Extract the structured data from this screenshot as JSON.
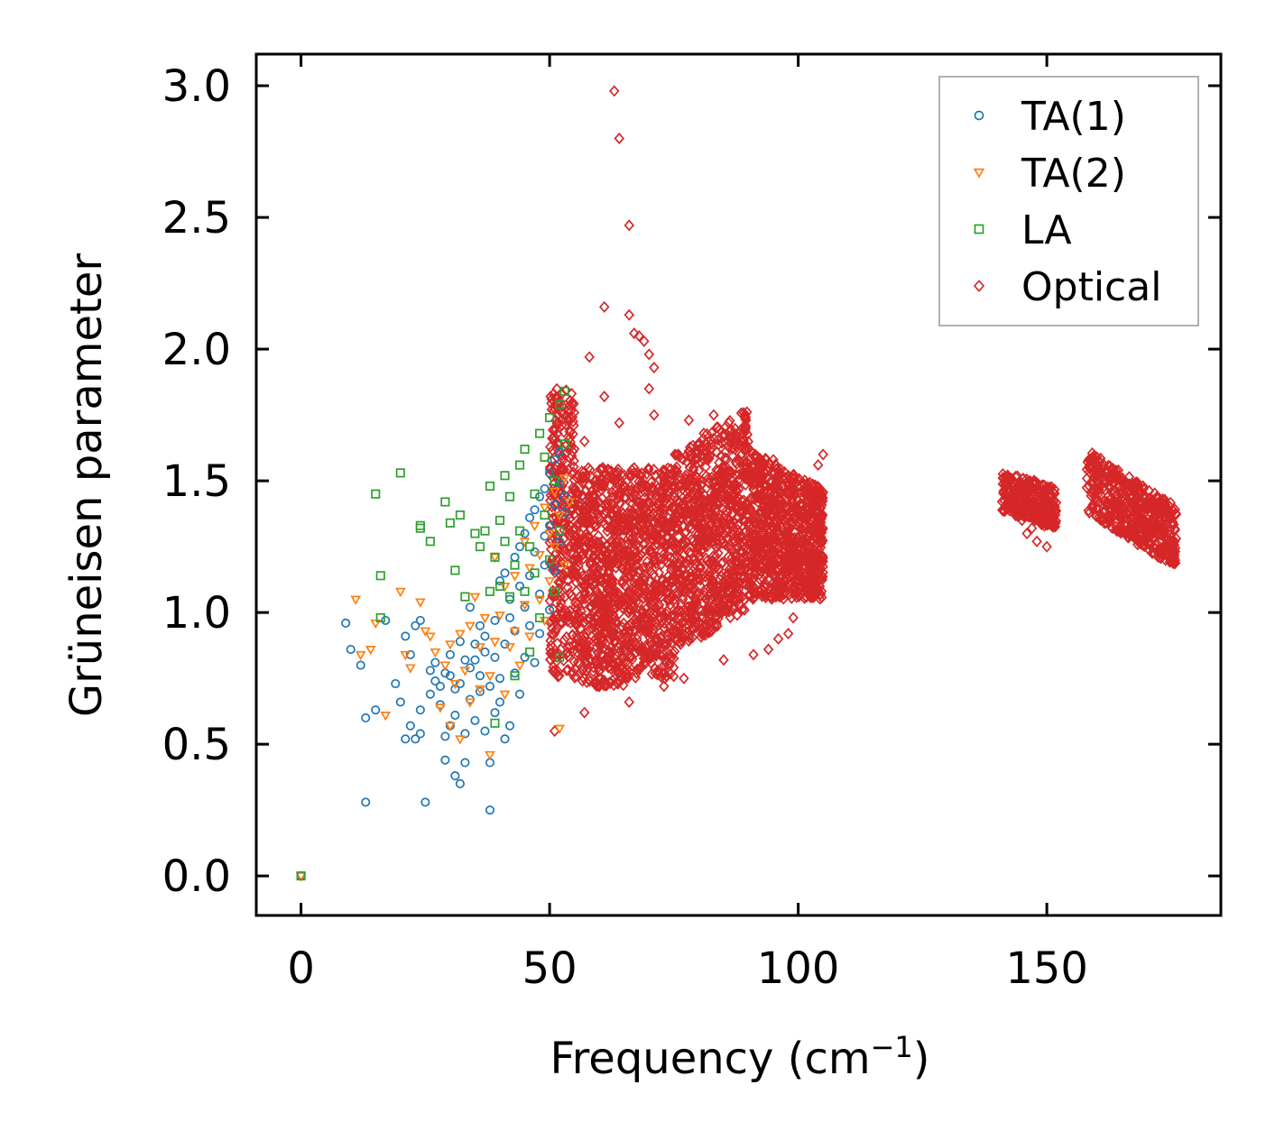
{
  "chart_data": {
    "type": "scatter",
    "title": "",
    "xlabel": "Frequency (cm",
    "xlabel_sup": "−1",
    "xlabel_tail": ")",
    "ylabel": "Grüneisen parameter",
    "xlim": [
      -9,
      185
    ],
    "ylim": [
      -0.15,
      3.12
    ],
    "xticks": [
      0,
      50,
      100,
      150
    ],
    "xtick_labels": [
      "0",
      "50",
      "100",
      "150"
    ],
    "yticks": [
      0.0,
      0.5,
      1.0,
      1.5,
      2.0,
      2.5,
      3.0
    ],
    "ytick_labels": [
      "0.0",
      "0.5",
      "1.0",
      "1.5",
      "2.0",
      "2.5",
      "3.0"
    ],
    "grid": false,
    "legend_position": "top-right",
    "series": [
      {
        "name": "TA(1)",
        "marker": "circle",
        "color": "#1f77b4",
        "x": [
          0,
          9,
          10,
          12,
          13,
          13,
          15,
          17,
          19,
          20,
          21,
          21,
          22,
          22,
          23,
          23,
          24,
          24,
          24,
          25,
          26,
          26,
          27,
          27,
          28,
          28,
          29,
          29,
          29,
          30,
          30,
          30,
          31,
          31,
          31,
          32,
          32,
          32,
          33,
          33,
          33,
          34,
          34,
          34,
          35,
          35,
          35,
          36,
          36,
          36,
          37,
          37,
          37,
          38,
          38,
          38,
          39,
          39,
          39,
          40,
          40,
          40,
          41,
          41,
          41,
          42,
          42,
          42,
          43,
          43,
          43,
          44,
          44,
          44,
          45,
          45,
          45,
          46,
          46,
          46,
          47,
          47,
          47,
          48,
          48,
          48,
          49,
          49,
          49,
          50,
          50,
          50,
          51,
          51,
          51,
          52,
          52,
          52,
          53,
          53
        ],
        "y": [
          0.0,
          0.96,
          0.86,
          0.8,
          0.6,
          0.28,
          0.63,
          0.97,
          0.73,
          0.66,
          0.91,
          0.52,
          0.57,
          0.84,
          0.95,
          0.52,
          0.54,
          0.63,
          0.97,
          0.28,
          0.69,
          0.78,
          0.81,
          0.74,
          0.72,
          0.65,
          0.77,
          0.53,
          0.44,
          0.76,
          0.57,
          0.84,
          0.71,
          0.38,
          0.61,
          0.73,
          0.35,
          0.89,
          0.82,
          0.54,
          0.43,
          0.67,
          1.02,
          0.79,
          0.88,
          0.59,
          0.82,
          0.7,
          0.95,
          0.76,
          0.55,
          0.91,
          0.85,
          0.72,
          0.43,
          0.25,
          0.97,
          0.83,
          0.62,
          1.12,
          0.75,
          0.66,
          0.88,
          1.15,
          0.52,
          0.98,
          1.05,
          0.57,
          0.77,
          1.21,
          0.93,
          0.69,
          1.1,
          1.25,
          0.83,
          1.3,
          1.02,
          0.95,
          1.14,
          1.36,
          0.81,
          1.23,
          1.39,
          1.07,
          1.44,
          0.92,
          1.18,
          1.47,
          1.29,
          1.01,
          1.53,
          1.33,
          1.16,
          1.41,
          1.58,
          1.27,
          1.49,
          1.61,
          1.38,
          1.44
        ]
      },
      {
        "name": "TA(2)",
        "marker": "triangle-down",
        "color": "#ff7f0e",
        "x": [
          0,
          11,
          12,
          14,
          15,
          17,
          20,
          21,
          22,
          24,
          25,
          26,
          27,
          28,
          29,
          30,
          30,
          31,
          32,
          32,
          33,
          34,
          34,
          35,
          36,
          36,
          37,
          38,
          38,
          39,
          39,
          40,
          41,
          41,
          42,
          43,
          43,
          44,
          45,
          45,
          46,
          46,
          47,
          48,
          48,
          49,
          49,
          50,
          50,
          51,
          51,
          52,
          52,
          53,
          53,
          54
        ],
        "y": [
          0.0,
          1.05,
          0.84,
          0.86,
          0.96,
          0.61,
          1.08,
          0.84,
          0.79,
          1.04,
          0.93,
          0.91,
          0.85,
          0.64,
          0.8,
          0.88,
          0.57,
          0.73,
          0.92,
          0.52,
          0.78,
          0.66,
          0.95,
          1.06,
          0.71,
          0.87,
          0.98,
          0.46,
          0.76,
          1.21,
          0.89,
          0.99,
          1.1,
          0.69,
          0.87,
          1.14,
          0.93,
          0.8,
          1.27,
          1.03,
          1.17,
          0.91,
          1.33,
          1.22,
          1.05,
          1.4,
          0.97,
          1.3,
          1.12,
          1.46,
          1.25,
          1.37,
          0.56,
          1.18,
          1.51,
          1.42
        ]
      },
      {
        "name": "LA",
        "marker": "square",
        "color": "#2ca02c",
        "x": [
          0,
          15,
          16,
          16,
          20,
          24,
          24,
          26,
          29,
          30,
          31,
          32,
          33,
          35,
          36,
          37,
          38,
          38,
          39,
          39,
          40,
          40,
          41,
          41,
          42,
          42,
          43,
          43,
          44,
          44,
          45,
          45,
          46,
          46,
          47,
          47,
          48,
          48,
          49,
          49,
          50,
          50,
          51,
          51,
          52,
          52,
          52,
          53,
          53
        ],
        "y": [
          0.0,
          1.45,
          1.14,
          0.98,
          1.53,
          1.33,
          1.32,
          1.27,
          1.42,
          1.34,
          1.16,
          1.37,
          1.06,
          1.3,
          1.25,
          1.31,
          1.08,
          1.48,
          0.58,
          1.21,
          1.35,
          1.1,
          1.52,
          1.27,
          1.06,
          1.44,
          0.76,
          1.18,
          1.56,
          1.31,
          1.08,
          1.62,
          1.25,
          0.85,
          1.45,
          1.15,
          1.68,
          0.98,
          1.37,
          1.59,
          1.2,
          1.74,
          1.08,
          1.5,
          1.31,
          1.79,
          0.83,
          1.64,
          1.84
        ]
      },
      {
        "name": "Optical",
        "marker": "diamond",
        "color": "#d62728",
        "x": [],
        "y": []
      }
    ]
  }
}
